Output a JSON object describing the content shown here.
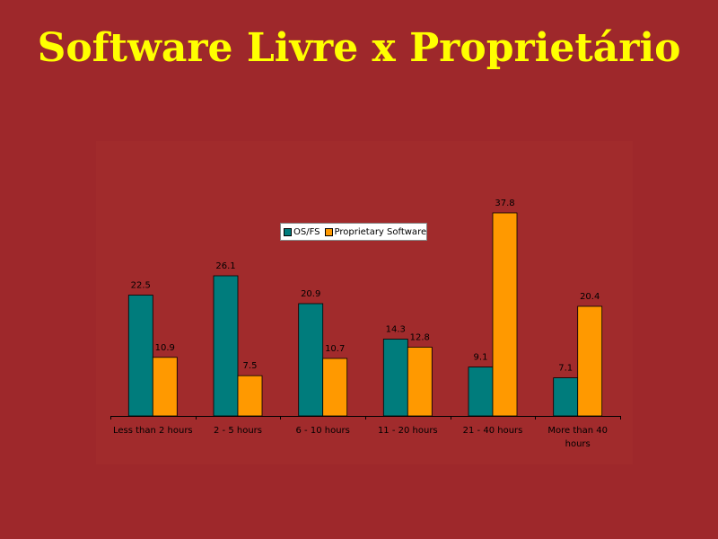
{
  "slide": {
    "title": "Software Livre x Proprietário",
    "title_color": "#ffff00",
    "background_color": "#9e282b"
  },
  "legend": {
    "items": [
      {
        "label": "OS/FS",
        "color": "#007c7c"
      },
      {
        "label": "Proprietary Software",
        "color": "#ff9900"
      }
    ]
  },
  "chart_data": {
    "type": "bar",
    "categories": [
      "Less than 2 hours",
      "2 - 5 hours",
      "6 - 10 hours",
      "11 - 20 hours",
      "21 - 40 hours",
      "More than 40 hours"
    ],
    "series": [
      {
        "name": "OS/FS",
        "color": "#007c7c",
        "values": [
          22.5,
          26.1,
          20.9,
          14.3,
          9.1,
          7.1
        ]
      },
      {
        "name": "Proprietary Software",
        "color": "#ff9900",
        "values": [
          10.9,
          7.5,
          10.7,
          12.8,
          37.8,
          20.4
        ]
      }
    ],
    "ylim": [
      0,
      40
    ],
    "grid": false,
    "legend_position": "top-center",
    "data_labels": true
  }
}
